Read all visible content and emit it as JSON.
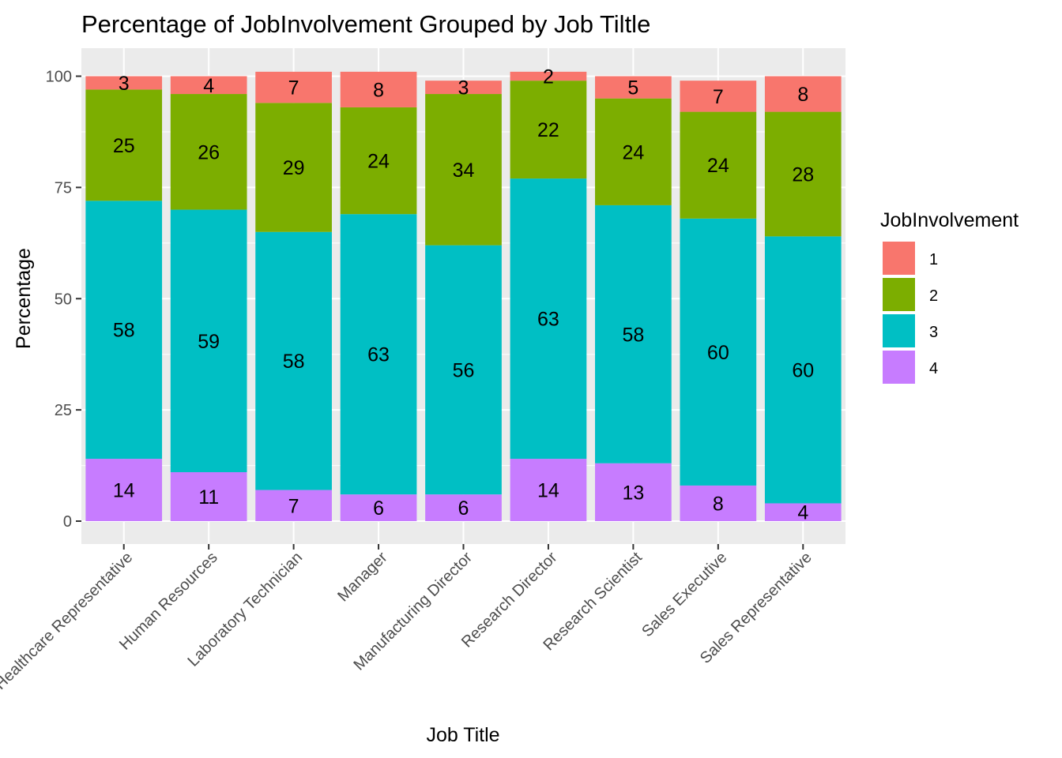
{
  "chart_data": {
    "type": "bar",
    "stacked": true,
    "title": "Percentage of JobInvolvement Grouped by Job Tiltle",
    "xlabel": "Job Title",
    "ylabel": "Percentage",
    "ylim": [
      0,
      101
    ],
    "yticks": [
      0,
      25,
      50,
      75,
      100
    ],
    "grid": true,
    "legend_position": "right",
    "legend_title": "JobInvolvement",
    "categories": [
      "Healthcare Representative",
      "Human Resources",
      "Laboratory Technician",
      "Manager",
      "Manufacturing Director",
      "Research Director",
      "Research Scientist",
      "Sales Executive",
      "Sales Representative"
    ],
    "series": [
      {
        "name": "4",
        "color": "#C77CFF",
        "values": [
          14,
          11,
          7,
          6,
          6,
          14,
          13,
          8,
          4
        ]
      },
      {
        "name": "3",
        "color": "#00BFC4",
        "values": [
          58,
          59,
          58,
          63,
          56,
          63,
          58,
          60,
          60
        ]
      },
      {
        "name": "2",
        "color": "#7CAE00",
        "values": [
          25,
          26,
          29,
          24,
          34,
          22,
          24,
          24,
          28
        ]
      },
      {
        "name": "1",
        "color": "#F8766D",
        "values": [
          3,
          4,
          7,
          8,
          3,
          2,
          5,
          7,
          8
        ]
      }
    ],
    "legend_order": [
      "1",
      "2",
      "3",
      "4"
    ]
  }
}
